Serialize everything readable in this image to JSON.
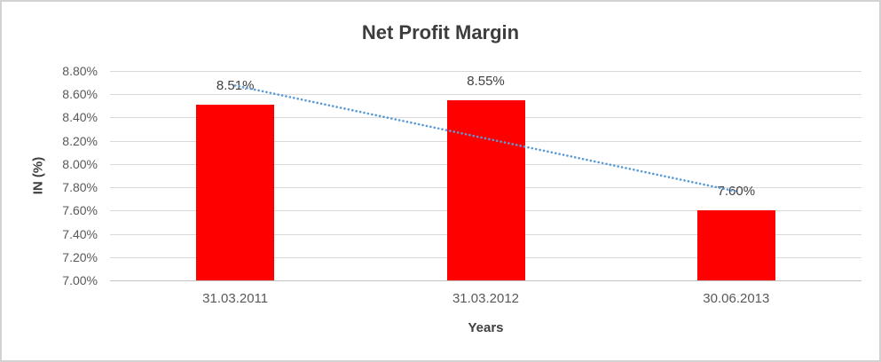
{
  "colors": {
    "bar": "#ff0000",
    "trendline": "#5b9bd5",
    "gridline": "#d9d9d9",
    "axis_line": "#c3c3c3",
    "text": "#595959",
    "title_text": "#3d3d3d",
    "border": "#d2d2d2"
  },
  "chart_data": {
    "type": "bar",
    "title": "Net Profit Margin",
    "xlabel": "Years",
    "ylabel": "IN (%)",
    "categories": [
      "31.03.2011",
      "31.03.2012",
      "30.06.2013"
    ],
    "values": [
      8.51,
      8.55,
      7.6
    ],
    "data_labels": [
      "8.51%",
      "8.55%",
      "7.60%"
    ],
    "ylim": [
      7.0,
      8.8
    ],
    "ytick_step": 0.2,
    "ytick_labels": [
      "8.80%",
      "8.60%",
      "8.40%",
      "8.20%",
      "8.00%",
      "7.80%",
      "7.60%",
      "7.40%",
      "7.20%",
      "7.00%"
    ],
    "grid": true,
    "legend": "none",
    "trendline": {
      "type": "linear",
      "style": "dotted",
      "start_value": 8.675,
      "end_value": 7.765
    }
  }
}
